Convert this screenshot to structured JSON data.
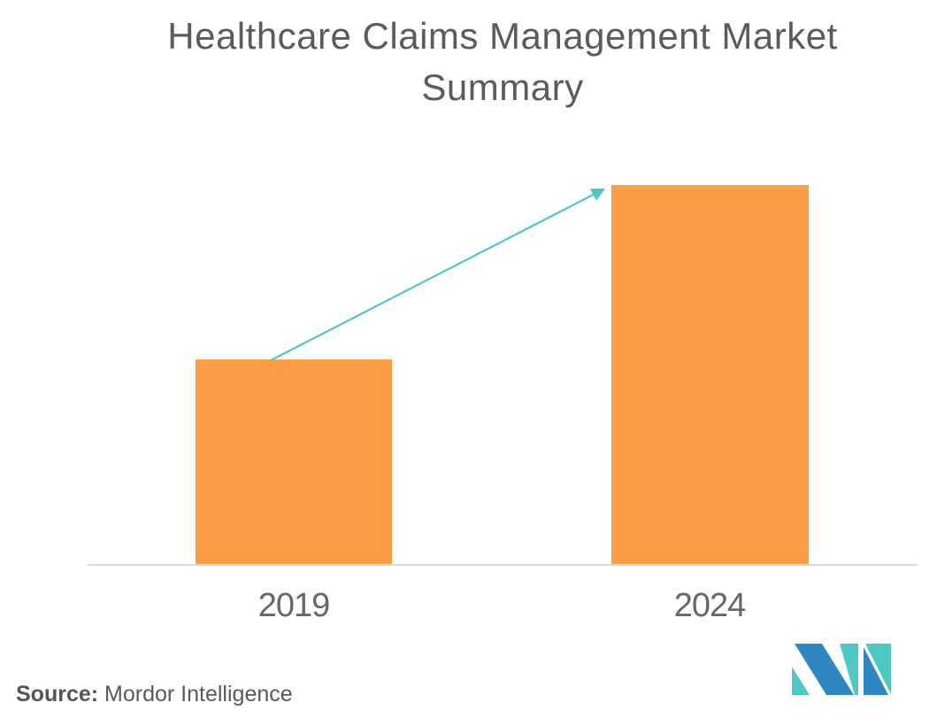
{
  "page": {
    "background": "#FFFFFF"
  },
  "title": {
    "text": "Healthcare Claims Management Market Summary",
    "color": "#5A5B5D"
  },
  "chart_data": {
    "type": "bar",
    "title": "Healthcare Claims Management Market Summary",
    "categories": [
      "2019",
      "2024"
    ],
    "relative_bar_heights": [
      0.54,
      1.0
    ],
    "value_labels_shown": false,
    "y_axis_shown": false,
    "grid": false,
    "legend": false,
    "xlabel": "",
    "ylabel": "",
    "bar_color": "#FB9E45",
    "axis_line_color": "#D8D8D8",
    "tick_label_color": "#666769",
    "annotation": {
      "type": "growth-arrow",
      "from_category": "2019",
      "to_category": "2024",
      "color": "#4EC6CB"
    }
  },
  "source": {
    "label": "Source:",
    "name": "Mordor Intelligence"
  },
  "logo": {
    "name": "mordor-intelligence-logo",
    "teal": "#4DC8C5",
    "blue": "#2E87C0"
  }
}
